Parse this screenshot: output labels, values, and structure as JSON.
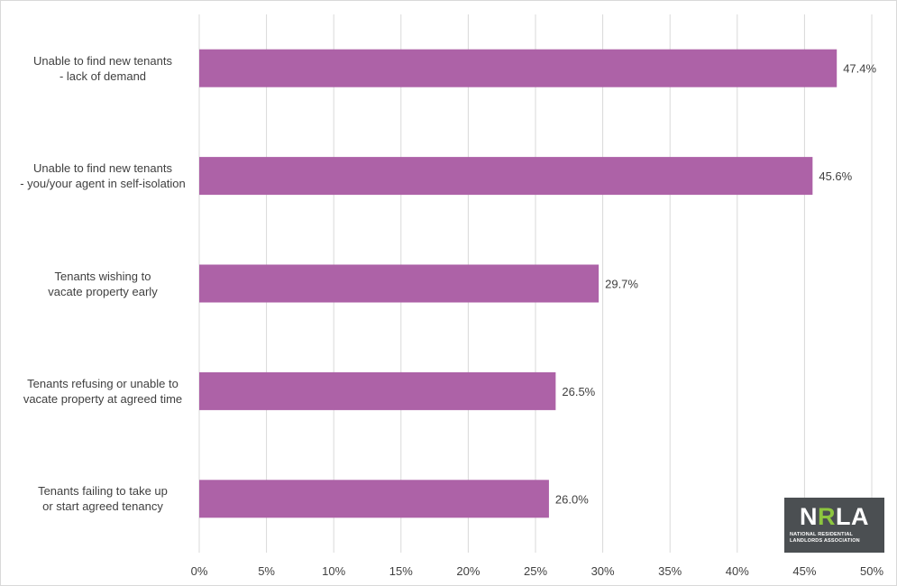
{
  "chart_data": {
    "type": "bar",
    "orientation": "horizontal",
    "categories": [
      [
        "Unable to find new tenants",
        "- lack of demand"
      ],
      [
        "Unable to find new tenants",
        "- you/your agent in self-isolation"
      ],
      [
        "Tenants wishing to",
        "vacate property early"
      ],
      [
        "Tenants refusing or unable to",
        "vacate property at agreed time"
      ],
      [
        "Tenants failing to take up",
        "or start agreed tenancy"
      ]
    ],
    "values": [
      47.4,
      45.6,
      29.7,
      26.5,
      26.0
    ],
    "data_labels": [
      "47.4%",
      "45.6%",
      "29.7%",
      "26.5%",
      "26.0%"
    ],
    "xlim": [
      0,
      50
    ],
    "x_ticks": [
      "0%",
      "5%",
      "10%",
      "15%",
      "20%",
      "25%",
      "30%",
      "35%",
      "40%",
      "45%",
      "50%"
    ],
    "grid": "vertical",
    "bar_color": "#ad62a7",
    "grid_color": "#d9d9d9",
    "text_color": "#404040",
    "xlabel": "",
    "ylabel": ""
  },
  "logo": {
    "text_n": "N",
    "text_r": "R",
    "text_la": "LA",
    "subtitle_lines": [
      "NATIONAL RESIDENTIAL",
      "LANDLORDS ASSOCIATION"
    ],
    "background": "#4b4f52",
    "accent": "#8dc63f"
  }
}
